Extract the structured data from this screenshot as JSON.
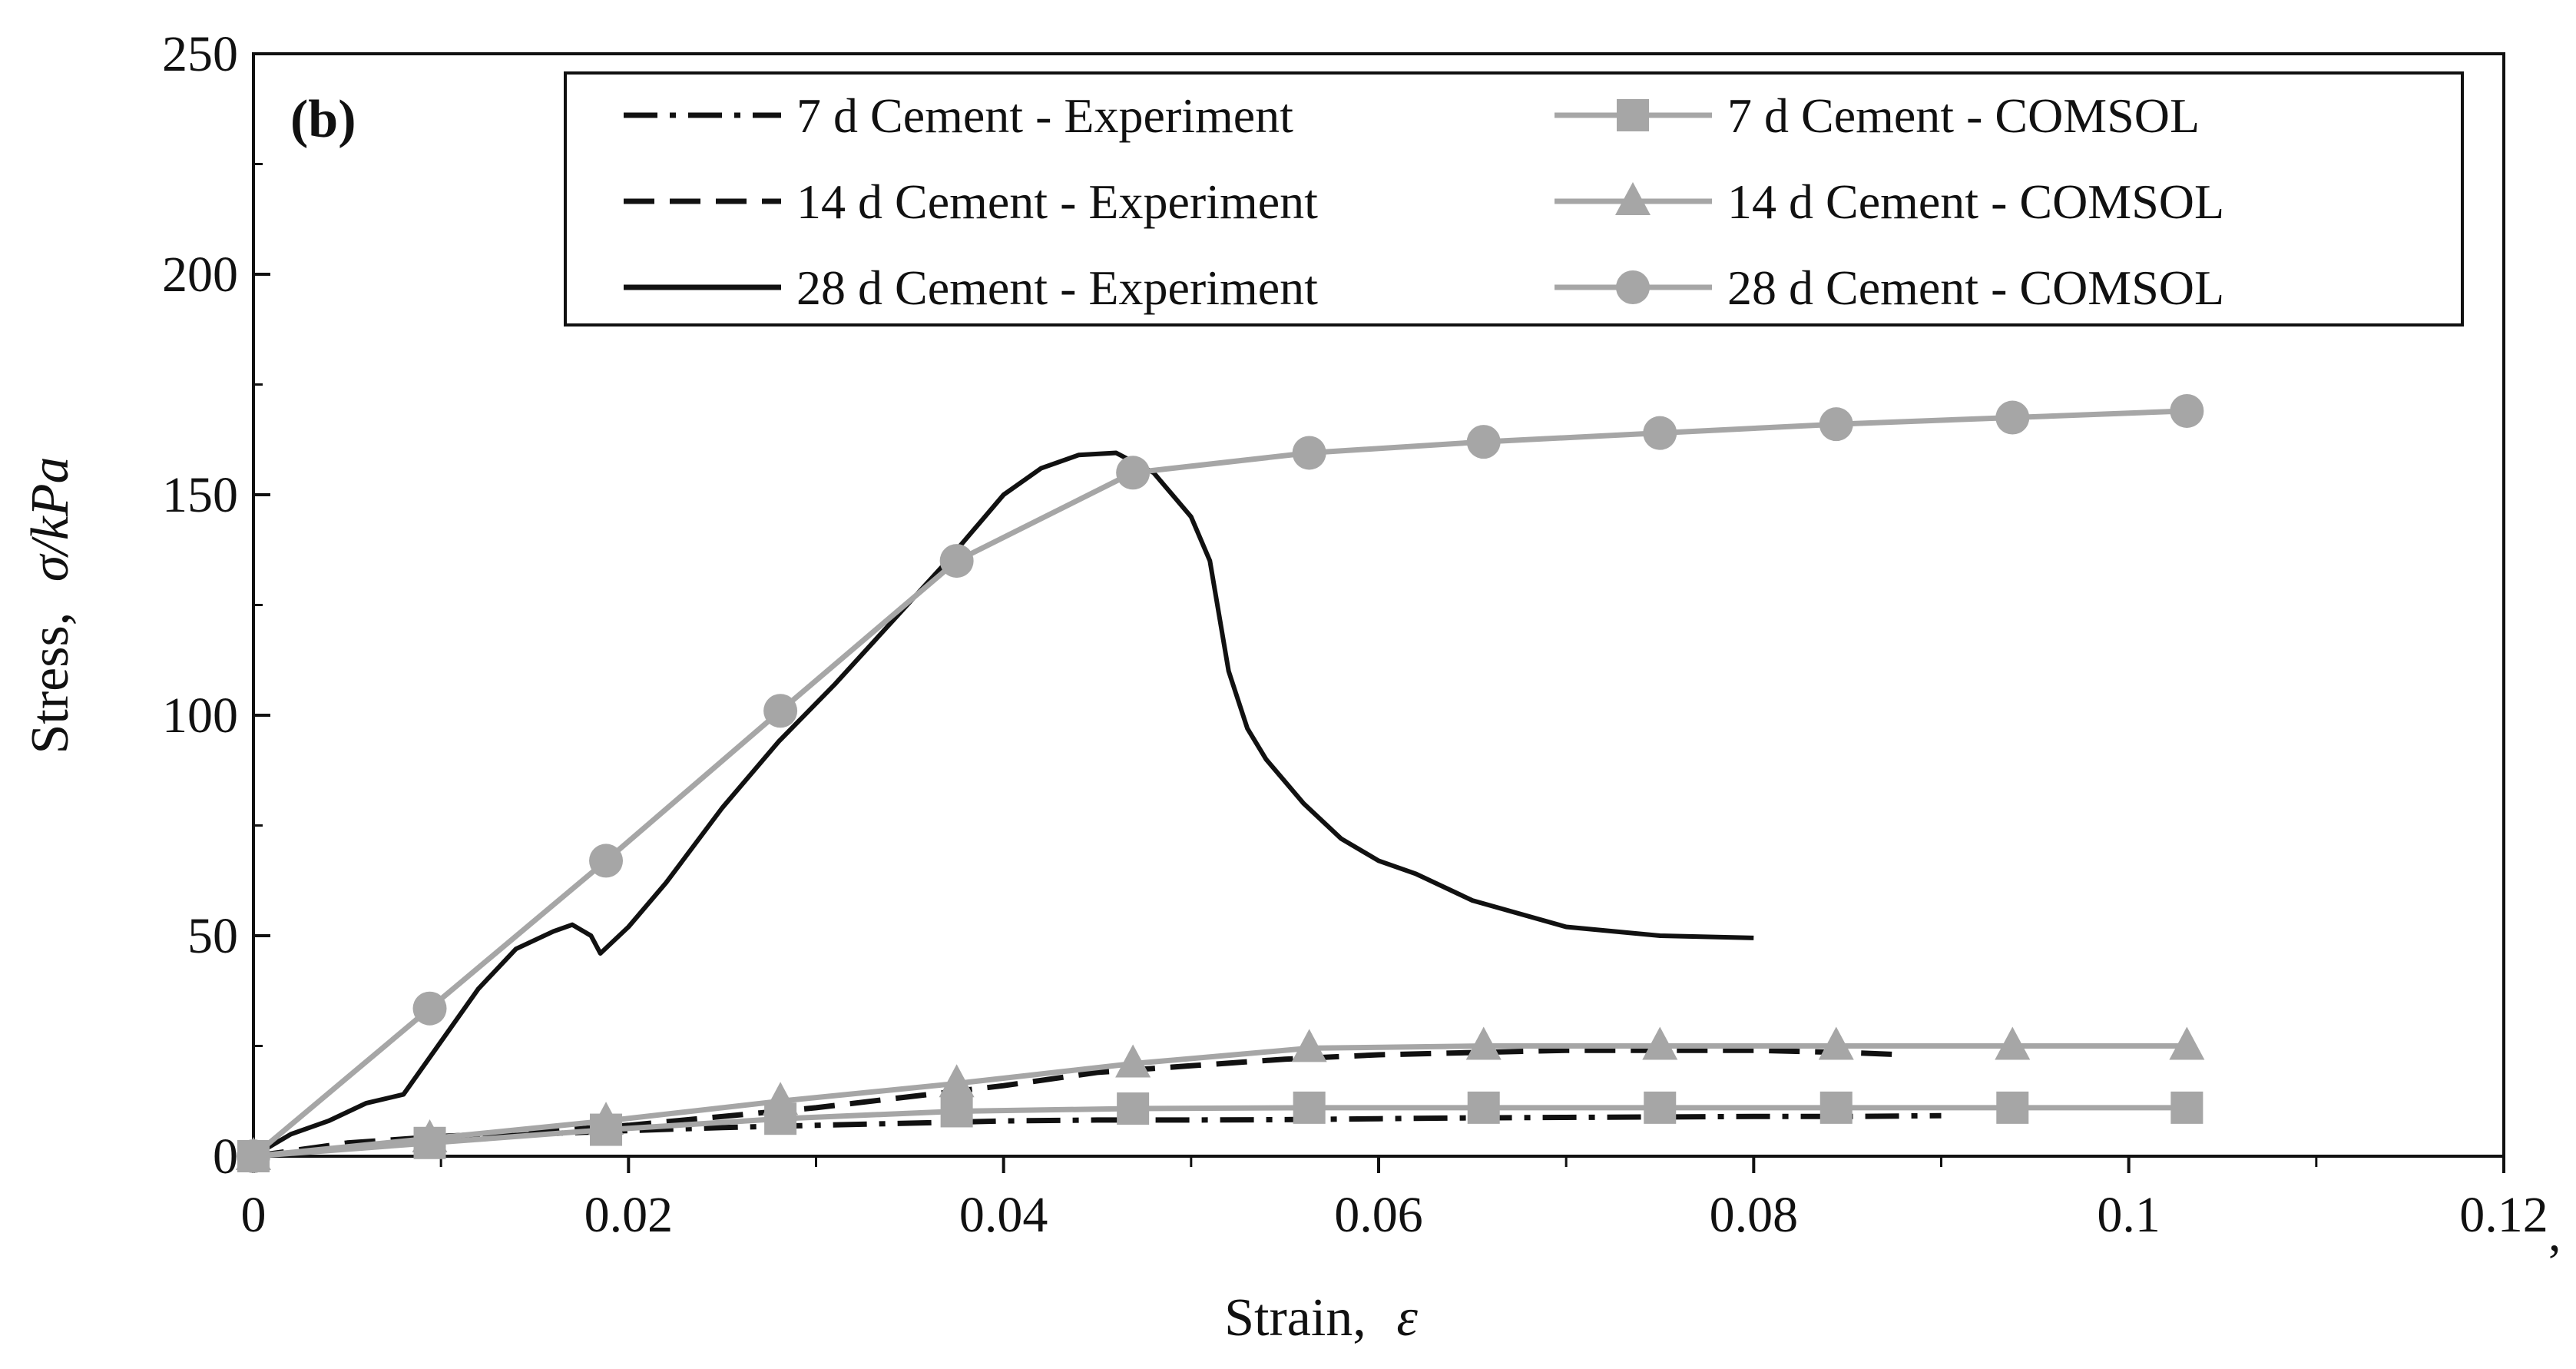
{
  "chart_data": {
    "type": "line",
    "panel_label": "(b)",
    "xlabel": "Strain,",
    "xlabel_symbol": "ε",
    "ylabel": "Stress,",
    "ylabel_symbol": "σ/kPa",
    "xlim": [
      0,
      0.12
    ],
    "ylim": [
      0,
      250
    ],
    "xticks": [
      0,
      0.02,
      0.04,
      0.06,
      0.08,
      0.1,
      0.12
    ],
    "xtick_labels": [
      "0",
      "0.02",
      "0.04",
      "0.06",
      "0.08",
      "0.1",
      "0.12"
    ],
    "yticks": [
      0,
      50,
      100,
      150,
      200,
      250
    ],
    "ytick_labels": [
      "0",
      "50",
      "100",
      "150",
      "200",
      "250"
    ],
    "trailing_mark": ",",
    "legend_position": "top-right",
    "series": [
      {
        "name": "7 d Cement - Experiment",
        "style": "dashdot",
        "color": "#111111",
        "marker": "none",
        "x": [
          0,
          0.005,
          0.01,
          0.015,
          0.02,
          0.025,
          0.03,
          0.035,
          0.04,
          0.045,
          0.05,
          0.055,
          0.06,
          0.065,
          0.07,
          0.075,
          0.08,
          0.085,
          0.09
        ],
        "y": [
          0,
          2,
          3.5,
          5,
          5.8,
          6.5,
          7,
          7.5,
          8,
          8.2,
          8.2,
          8.3,
          8.5,
          8.7,
          8.8,
          8.9,
          9,
          9,
          9.2
        ]
      },
      {
        "name": "14 d Cement - Experiment",
        "style": "dashed",
        "color": "#111111",
        "marker": "none",
        "x": [
          0,
          0.005,
          0.01,
          0.015,
          0.02,
          0.025,
          0.03,
          0.035,
          0.04,
          0.045,
          0.05,
          0.055,
          0.06,
          0.065,
          0.07,
          0.075,
          0.08,
          0.085,
          0.088
        ],
        "y": [
          0,
          3,
          4.5,
          5.5,
          7,
          9,
          11,
          13.5,
          16,
          19,
          20.5,
          22,
          23,
          23.5,
          24,
          24,
          24,
          23.5,
          23
        ]
      },
      {
        "name": "28 d Cement - Experiment",
        "style": "solid",
        "color": "#111111",
        "marker": "none",
        "x": [
          0,
          0.002,
          0.004,
          0.006,
          0.008,
          0.01,
          0.012,
          0.014,
          0.016,
          0.017,
          0.018,
          0.0185,
          0.02,
          0.022,
          0.025,
          0.028,
          0.031,
          0.034,
          0.037,
          0.04,
          0.042,
          0.044,
          0.046,
          0.048,
          0.05,
          0.051,
          0.052,
          0.053,
          0.054,
          0.056,
          0.058,
          0.06,
          0.062,
          0.065,
          0.07,
          0.075,
          0.08
        ],
        "y": [
          0,
          5,
          8,
          12,
          14,
          26,
          38,
          47,
          51,
          52.5,
          50,
          46,
          52,
          62,
          79,
          94,
          107,
          121,
          135,
          150,
          156,
          159,
          159.5,
          155,
          145,
          135,
          110,
          97,
          90,
          80,
          72,
          67,
          64,
          58,
          52,
          50,
          49.5
        ]
      },
      {
        "name": "7 d Cement - COMSOL",
        "style": "solid",
        "color": "#a6a6a6",
        "marker": "square",
        "x": [
          0,
          0.0094,
          0.0188,
          0.0281,
          0.0375,
          0.0469,
          0.0563,
          0.0656,
          0.075,
          0.0844,
          0.0938,
          0.1031
        ],
        "y": [
          0,
          3,
          6,
          8.5,
          10.2,
          10.8,
          11,
          11,
          11,
          11,
          11,
          11
        ]
      },
      {
        "name": "14 d Cement - COMSOL",
        "style": "solid",
        "color": "#a6a6a6",
        "marker": "triangle",
        "x": [
          0,
          0.0094,
          0.0188,
          0.0281,
          0.0375,
          0.0469,
          0.0563,
          0.0656,
          0.075,
          0.0844,
          0.0938,
          0.1031
        ],
        "y": [
          0,
          4,
          8,
          12.5,
          16.5,
          21,
          24.5,
          25,
          25,
          25,
          25,
          25
        ]
      },
      {
        "name": "28 d Cement - COMSOL",
        "style": "solid",
        "color": "#a6a6a6",
        "marker": "circle",
        "x": [
          0,
          0.0094,
          0.0188,
          0.0281,
          0.0375,
          0.0469,
          0.0563,
          0.0656,
          0.075,
          0.0844,
          0.0938,
          0.1031
        ],
        "y": [
          0,
          33.5,
          67,
          101,
          135,
          155,
          159.5,
          162,
          164,
          166,
          167.5,
          169
        ]
      }
    ]
  }
}
